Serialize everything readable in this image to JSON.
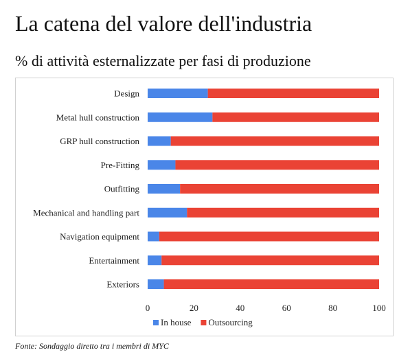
{
  "title": "La catena del valore dell'industria",
  "subtitle": "% di attività esternalizzate per fasi di produzione",
  "source": "Fonte: Sondaggio diretto tra i membri di MYC",
  "colors": {
    "in_house": "#4a86e8",
    "outsourcing": "#ea4335"
  },
  "chart_data": {
    "type": "bar",
    "orientation": "horizontal",
    "stacked": true,
    "categories": [
      "Design",
      "Metal hull construction",
      "GRP hull construction",
      "Pre-Fitting",
      "Outfitting",
      "Mechanical and handling part",
      "Navigation equipment",
      "Entertainment",
      "Exteriors"
    ],
    "series": [
      {
        "name": "In house",
        "values": [
          26,
          28,
          10,
          12,
          14,
          17,
          5,
          6,
          7
        ]
      },
      {
        "name": "Outsourcing",
        "values": [
          74,
          72,
          90,
          88,
          86,
          83,
          95,
          94,
          93
        ]
      }
    ],
    "xlim": [
      0,
      100
    ],
    "xticks": [
      0,
      20,
      40,
      60,
      80,
      100
    ],
    "grid": false,
    "legend": "bottom"
  }
}
